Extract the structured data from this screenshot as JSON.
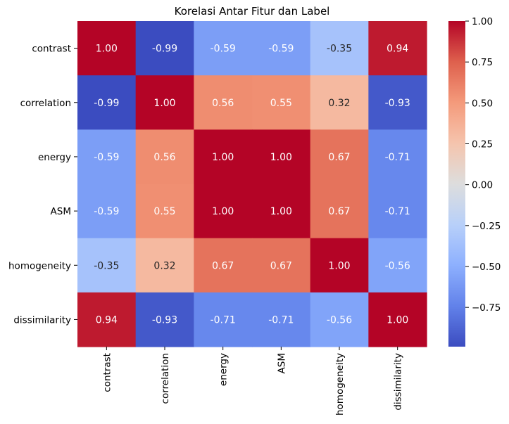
{
  "chart_data": {
    "type": "heatmap",
    "title": "Korelasi Antar Fitur dan Label",
    "xlabel": "",
    "ylabel": "",
    "x_categories": [
      "contrast",
      "correlation",
      "energy",
      "ASM",
      "homogeneity",
      "dissimilarity"
    ],
    "y_categories": [
      "contrast",
      "correlation",
      "energy",
      "ASM",
      "homogeneity",
      "dissimilarity"
    ],
    "values": [
      [
        1.0,
        -0.99,
        -0.59,
        -0.59,
        -0.35,
        0.94
      ],
      [
        -0.99,
        1.0,
        0.56,
        0.55,
        0.32,
        -0.93
      ],
      [
        -0.59,
        0.56,
        1.0,
        1.0,
        0.67,
        -0.71
      ],
      [
        -0.59,
        0.55,
        1.0,
        1.0,
        0.67,
        -0.71
      ],
      [
        -0.35,
        0.32,
        0.67,
        0.67,
        1.0,
        -0.56
      ],
      [
        0.94,
        -0.93,
        -0.71,
        -0.71,
        -0.56,
        1.0
      ]
    ],
    "annotation_format": "0.00",
    "colormap": "coolwarm",
    "colorbar": {
      "range": [
        -0.99,
        1.0
      ],
      "ticks": [
        -0.75,
        -0.5,
        -0.25,
        0.0,
        0.25,
        0.5,
        0.75,
        1.0
      ],
      "tick_labels": [
        "−0.75",
        "−0.50",
        "−0.25",
        "0.00",
        "0.25",
        "0.50",
        "0.75",
        "1.00"
      ]
    }
  }
}
